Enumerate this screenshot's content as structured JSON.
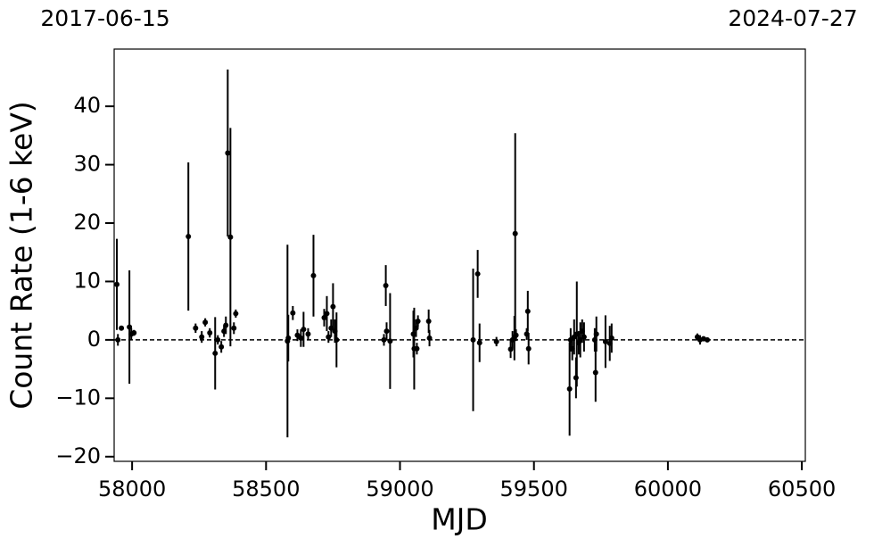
{
  "chart_data": {
    "type": "errorbar_scatter",
    "xlabel": "MJD",
    "ylabel": "Count Rate (1-6 keV)",
    "top_left_label": "2017-06-15",
    "top_right_label": "2024-07-27",
    "xlim": [
      57933,
      60513
    ],
    "ylim": [
      -20.8,
      49.8
    ],
    "xticks": [
      58000,
      58500,
      59000,
      59500,
      60000,
      60500
    ],
    "yticks": [
      {
        "value": -20,
        "label": "−20"
      },
      {
        "value": -10,
        "label": "−10"
      },
      0,
      10,
      20,
      30,
      40
    ],
    "reference_line": 0,
    "series": [
      {
        "color": "#000000",
        "x": [
          57943,
          57947,
          57960,
          57990,
          57997,
          58007,
          58210,
          58237,
          58260,
          58273,
          58290,
          58310,
          58320,
          58333,
          58343,
          58350,
          58357,
          58367,
          58380,
          58387,
          58580,
          58583,
          58600,
          58617,
          58630,
          58640,
          58657,
          58677,
          58717,
          58727,
          58733,
          58743,
          58750,
          58757,
          58763,
          58940,
          58947,
          58950,
          58963,
          59050,
          59053,
          59060,
          59063,
          59067,
          59107,
          59110,
          59273,
          59290,
          59297,
          59360,
          59413,
          59420,
          59427,
          59430,
          59433,
          59473,
          59477,
          59480,
          59633,
          59637,
          59643,
          59650,
          59657,
          59660,
          59667,
          59673,
          59680,
          59687,
          59727,
          59730,
          59733,
          59767,
          59783,
          59790,
          60110,
          60120,
          60133,
          60147
        ],
        "values": [
          9.5,
          0,
          2,
          2.2,
          1,
          1.2,
          17.7,
          2,
          0.5,
          3,
          1.2,
          -2.3,
          0,
          -1.2,
          1.5,
          2.5,
          32,
          17.6,
          2,
          4.5,
          -0.2,
          0.3,
          4.6,
          0.8,
          0.3,
          1.8,
          1,
          11,
          3.8,
          4.5,
          0.5,
          2,
          5.7,
          1.5,
          0,
          0,
          9.3,
          1.5,
          -0.2,
          1,
          -1.5,
          2,
          -1.5,
          3.2,
          3.2,
          0.3,
          0,
          11.3,
          -0.5,
          -0.3,
          -1.6,
          0,
          0.3,
          18.2,
          0.8,
          1,
          4.9,
          -1.5,
          -8.4,
          0,
          -1.5,
          0.5,
          -6.5,
          1,
          -0.5,
          0,
          1.5,
          0.5,
          0,
          -5.6,
          1,
          -0.3,
          -0.6,
          0.3,
          0.5,
          0,
          0.2,
          0
        ],
        "errors": [
          7.8,
          1,
          0.3,
          9.7,
          1,
          0.5,
          12.7,
          0.8,
          1,
          0.7,
          0.8,
          6.2,
          0.8,
          1,
          1,
          1.5,
          14.3,
          18.7,
          1,
          0.7,
          16.5,
          4,
          1.2,
          1,
          1.5,
          3,
          1,
          7,
          1.5,
          3,
          1,
          1.5,
          4,
          2,
          4.7,
          1,
          3.5,
          1.5,
          8.2,
          4,
          7,
          1.5,
          1,
          1,
          2,
          1.4,
          12.2,
          4.1,
          3.3,
          0.8,
          1.5,
          1.5,
          3.8,
          17.2,
          1,
          1,
          3.5,
          2.7,
          8,
          2,
          2,
          3,
          3.5,
          9,
          2,
          3,
          2,
          2.5,
          2,
          5,
          3,
          4.5,
          3,
          2.5,
          0.6,
          0.8,
          0.4,
          0.3
        ]
      }
    ]
  }
}
